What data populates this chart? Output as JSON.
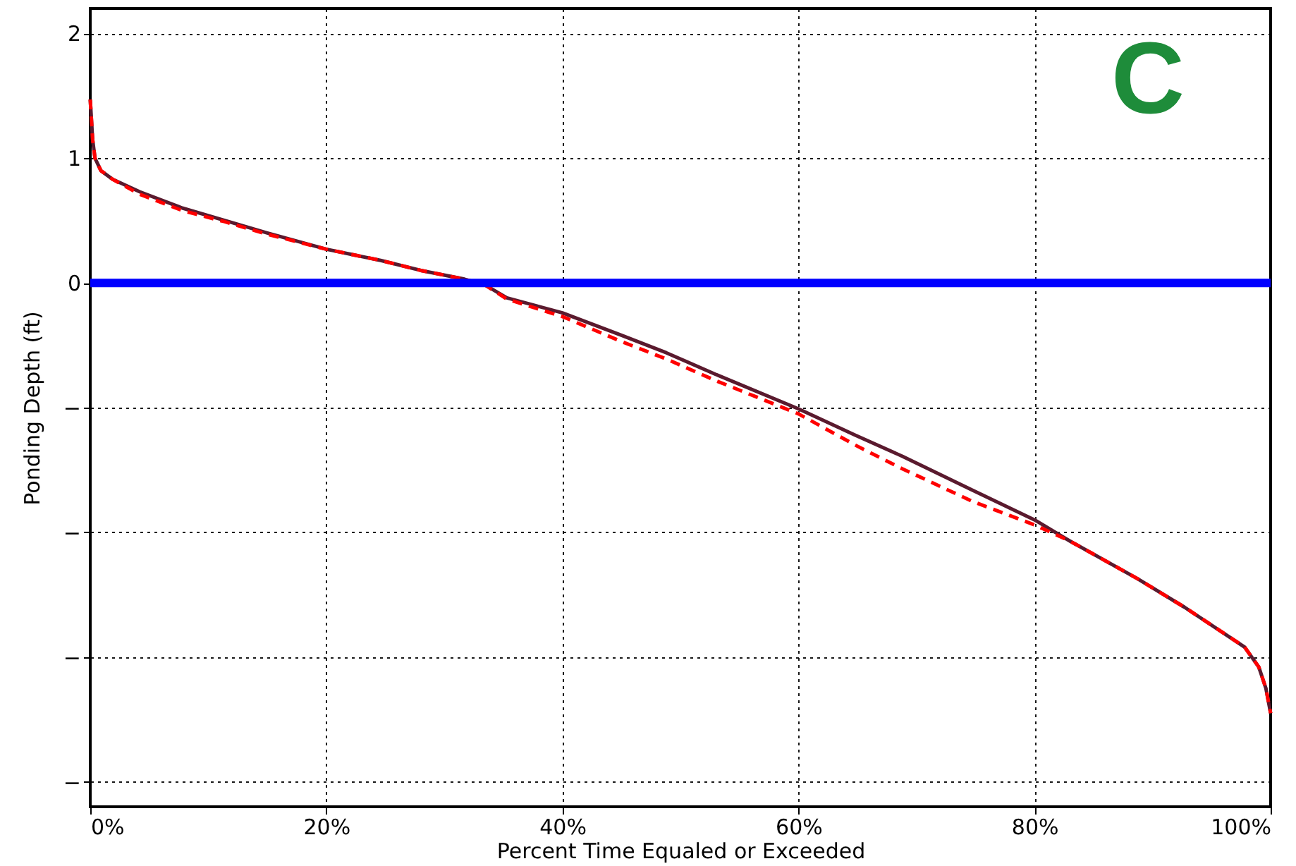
{
  "chart_data": {
    "type": "line",
    "xlabel": "Percent Time Equaled or Exceeded",
    "ylabel": "Ponding Depth (ft)",
    "annotations": [
      "C"
    ],
    "xlim": [
      0,
      100
    ],
    "xticks": [
      {
        "value": 0,
        "label": "0%"
      },
      {
        "value": 20,
        "label": "20%"
      },
      {
        "value": 40,
        "label": "40%"
      },
      {
        "value": 60,
        "label": "60%"
      },
      {
        "value": 80,
        "label": "80%"
      },
      {
        "value": 100,
        "label": "100%"
      }
    ],
    "ylim": [
      -4.2,
      2.2
    ],
    "yticks": [
      {
        "value": -4,
        "label": "−"
      },
      {
        "value": -3,
        "label": "−"
      },
      {
        "value": -2,
        "label": "−"
      },
      {
        "value": -1,
        "label": "−"
      },
      0,
      1,
      2
    ],
    "grid": true,
    "series": [
      {
        "color": "#5a1a2e",
        "line_style": "solid",
        "x": [
          0,
          0.2,
          0.4,
          0.9,
          1.9,
          4.2,
          7.8,
          11.4,
          15,
          20,
          24.6,
          28,
          31.7,
          33.5,
          35.3,
          40,
          45,
          48.8,
          52.9,
          60,
          64.8,
          68.8,
          74.7,
          80,
          83,
          88.7,
          92.7,
          97.8,
          99,
          99.6,
          100
        ],
        "values": [
          1.47,
          1.15,
          1.0,
          0.9,
          0.83,
          0.73,
          0.6,
          0.5,
          0.4,
          0.27,
          0.18,
          0.1,
          0.03,
          -0.02,
          -0.12,
          -0.24,
          -0.42,
          -0.56,
          -0.73,
          -1.01,
          -1.22,
          -1.39,
          -1.66,
          -1.9,
          -2.07,
          -2.37,
          -2.6,
          -2.92,
          -3.08,
          -3.25,
          -3.45
        ]
      },
      {
        "color": "#ff0000",
        "line_style": "dashed",
        "x": [
          0,
          0.2,
          0.4,
          0.9,
          1.9,
          4.2,
          7.8,
          11.4,
          15,
          20,
          24.6,
          28,
          31.7,
          33.5,
          35.3,
          40,
          45,
          48.8,
          52.9,
          60,
          64.8,
          68.8,
          74.7,
          80,
          83,
          88.7,
          92.7,
          97.8,
          99,
          99.6,
          100
        ],
        "values": [
          1.47,
          1.15,
          1.0,
          0.9,
          0.83,
          0.71,
          0.58,
          0.49,
          0.39,
          0.27,
          0.18,
          0.1,
          0.03,
          -0.02,
          -0.13,
          -0.27,
          -0.47,
          -0.61,
          -0.78,
          -1.05,
          -1.3,
          -1.49,
          -1.75,
          -1.94,
          -2.07,
          -2.37,
          -2.6,
          -2.92,
          -3.08,
          -3.25,
          -3.45
        ]
      }
    ],
    "ref_lines": [
      {
        "axis": "y",
        "value": 0,
        "color": "#0000ff"
      }
    ]
  }
}
